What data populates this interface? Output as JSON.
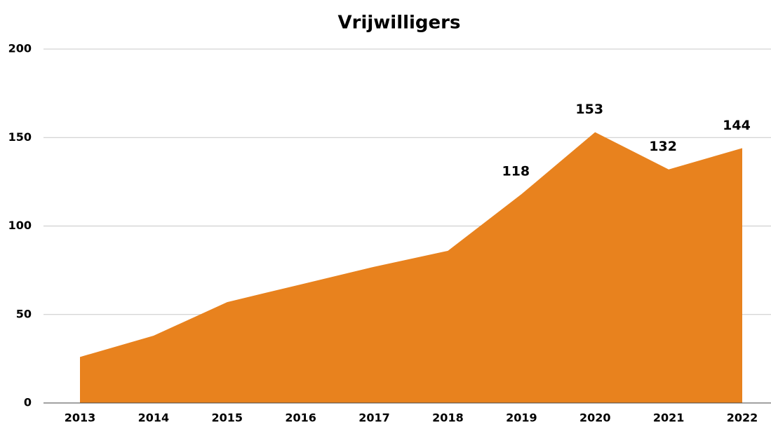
{
  "chart_data": {
    "type": "area",
    "title": "Vrijwilligers",
    "categories": [
      "2013",
      "2014",
      "2015",
      "2016",
      "2017",
      "2018",
      "2019",
      "2020",
      "2021",
      "2022"
    ],
    "values": [
      26,
      38,
      57,
      67,
      77,
      86,
      118,
      153,
      132,
      144
    ],
    "value_labels": [
      null,
      null,
      null,
      null,
      null,
      null,
      "118",
      "153",
      "132",
      "144"
    ],
    "color": "#e8821e",
    "ylim": [
      0,
      200
    ],
    "yticks": [
      0,
      50,
      100,
      150,
      200
    ],
    "grid": true
  }
}
